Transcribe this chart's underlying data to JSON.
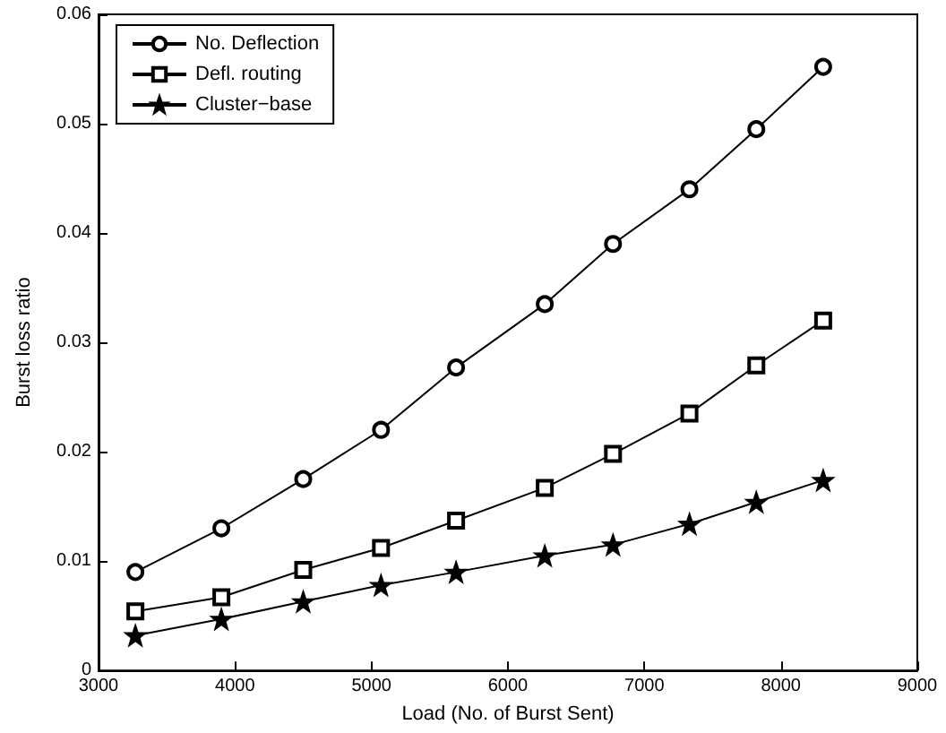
{
  "chart_data": {
    "type": "line",
    "xlabel": "Load (No. of Burst Sent)",
    "ylabel": "Burst loss ratio",
    "x": [
      3270,
      3900,
      4500,
      5070,
      5620,
      6270,
      6770,
      7330,
      7820,
      8310
    ],
    "series": [
      {
        "name": "No. Deflection",
        "color": "#000000",
        "marker": "circle",
        "values": [
          0.009,
          0.013,
          0.0175,
          0.022,
          0.0277,
          0.0335,
          0.039,
          0.044,
          0.0495,
          0.0552
        ]
      },
      {
        "name": "Defl. routing",
        "color": "#000000",
        "marker": "square",
        "values": [
          0.0054,
          0.0067,
          0.0092,
          0.0112,
          0.0137,
          0.0167,
          0.0198,
          0.0235,
          0.0279,
          0.032
        ]
      },
      {
        "name": "Cluster−base",
        "color": "#000000",
        "marker": "star",
        "values": [
          0.0032,
          0.0047,
          0.0063,
          0.0078,
          0.009,
          0.0105,
          0.0115,
          0.0134,
          0.0154,
          0.0174
        ]
      }
    ],
    "xlim": [
      3000,
      9000
    ],
    "xticks": [
      3000,
      4000,
      5000,
      6000,
      7000,
      8000,
      9000
    ],
    "ylim": [
      0,
      0.06
    ],
    "yticks": [
      0,
      0.01,
      0.02,
      0.03,
      0.04,
      0.05,
      0.06
    ],
    "grid": false,
    "legend": "top left",
    "line_style": "solid"
  }
}
